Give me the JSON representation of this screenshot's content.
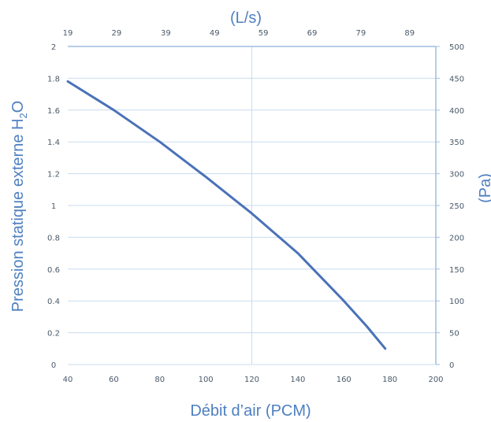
{
  "chart_data": {
    "type": "line",
    "title": "",
    "xlabel": "Débit d’air (PCM)",
    "ylabel": "Pression statique externe H",
    "ylabel_sub": "2",
    "ylabel_tail": "O",
    "x2label": "(L/s)",
    "y2label": "(Pa)",
    "xlim": [
      40,
      200
    ],
    "ylim": [
      0,
      2
    ],
    "x_ticks": [
      "40",
      "60",
      "80",
      "100",
      "120",
      "140",
      "160",
      "180",
      "200"
    ],
    "y_ticks": [
      "0",
      "0.2",
      "0.4",
      "0.6",
      "0.8",
      "1",
      "1.2",
      "1.4",
      "1.6",
      "1.8",
      "2"
    ],
    "x2_ticks": [
      "19",
      "29",
      "39",
      "49",
      "59",
      "69",
      "79",
      "89"
    ],
    "x2_tick_positions_pcm": [
      40,
      61.2,
      82.6,
      103.8,
      125,
      146.2,
      167.4,
      188.6
    ],
    "y2_ticks": [
      "0",
      "50",
      "100",
      "150",
      "200",
      "250",
      "300",
      "350",
      "400",
      "450",
      "500"
    ],
    "grid": true,
    "line_color": "#4a72b8",
    "axis_color": "#9fbde0",
    "grid_color": "#c9dcf0",
    "series": [
      {
        "x": [
          40,
          60,
          80,
          100,
          120,
          140,
          160,
          170,
          178
        ],
        "values": [
          1.78,
          1.6,
          1.4,
          1.18,
          0.95,
          0.7,
          0.4,
          0.24,
          0.1
        ]
      }
    ]
  }
}
